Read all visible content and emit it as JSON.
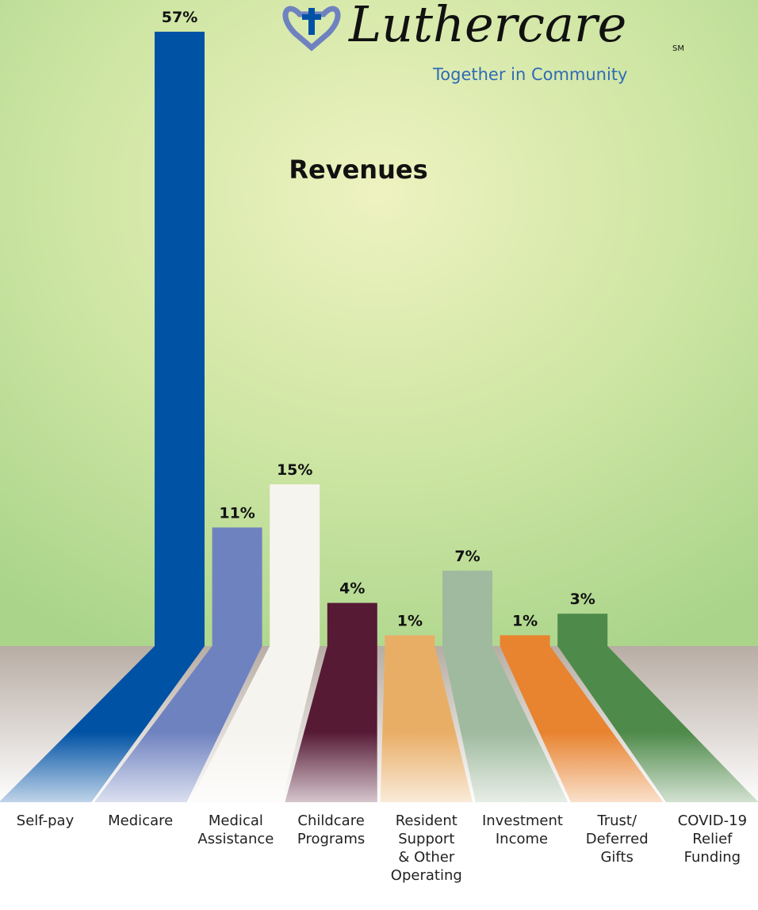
{
  "brand": {
    "name": "Luthercare",
    "mark": "SM",
    "tagline": "Together in Community"
  },
  "chart_data": {
    "type": "bar",
    "title": "Revenues",
    "categories": [
      "Self-pay",
      "Medicare",
      "Medical Assistance",
      "Childcare Programs",
      "Resident Support & Other Operating",
      "Investment Income",
      "Trust/ Deferred Gifts",
      "COVID-19 Relief Funding"
    ],
    "values": [
      57,
      11,
      15,
      4,
      1,
      7,
      1,
      3
    ],
    "value_labels": [
      "57%",
      "11%",
      "15%",
      "4%",
      "1%",
      "7%",
      "1%",
      "3%"
    ],
    "colors": [
      "#0052a5",
      "#6f82c0",
      "#f6f4ef",
      "#561a35",
      "#e9ae66",
      "#9fba9f",
      "#e8832f",
      "#4e8a4a"
    ]
  }
}
